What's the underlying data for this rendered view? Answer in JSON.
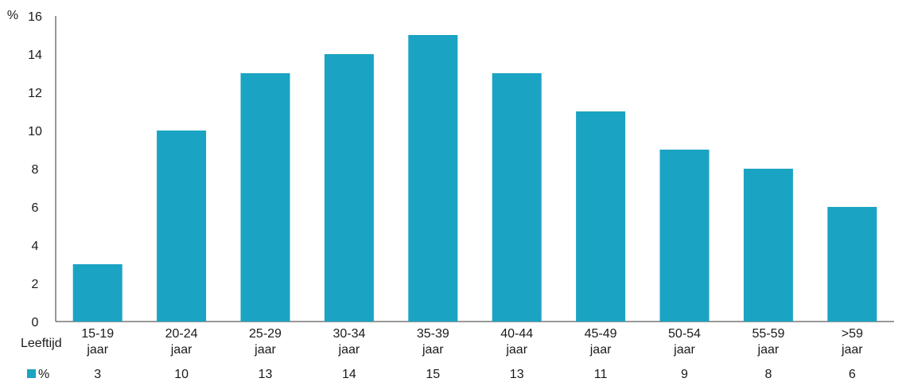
{
  "chart_data": {
    "type": "bar",
    "y_unit_label": "%",
    "row_label": "Leeftijd",
    "categories": [
      [
        "15-19",
        "jaar"
      ],
      [
        "20-24",
        "jaar"
      ],
      [
        "25-29",
        "jaar"
      ],
      [
        "30-34",
        "jaar"
      ],
      [
        "35-39",
        "jaar"
      ],
      [
        "40-44",
        "jaar"
      ],
      [
        "45-49",
        "jaar"
      ],
      [
        "50-54",
        "jaar"
      ],
      [
        "55-59",
        "jaar"
      ],
      [
        ">59",
        "jaar"
      ]
    ],
    "series": [
      {
        "name": "%",
        "values": [
          3,
          10,
          13,
          14,
          15,
          13,
          11,
          9,
          8,
          6
        ],
        "color": "#1aa3c2"
      }
    ],
    "ylim": [
      0,
      16
    ],
    "yticks": [
      0,
      2,
      4,
      6,
      8,
      10,
      12,
      14,
      16
    ],
    "grid": false,
    "legend": "data-table"
  }
}
